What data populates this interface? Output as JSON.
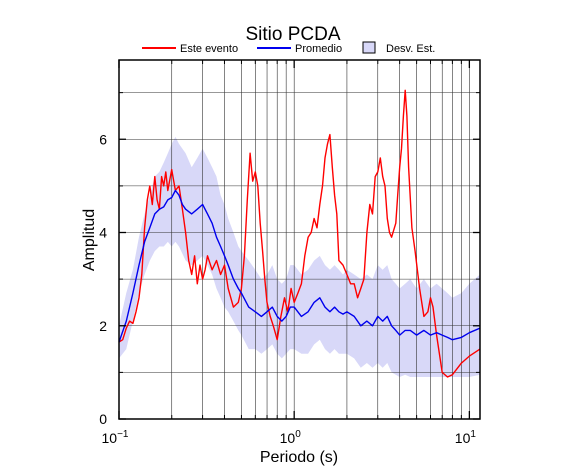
{
  "chart_data": {
    "type": "line",
    "title": "Sitio PCDA",
    "xlabel": "Periodo (s)",
    "ylabel": "Amplitud",
    "x_scale": "log",
    "xlim": [
      0.1,
      11.5
    ],
    "ylim": [
      0,
      7.7
    ],
    "x_ticks": [
      {
        "value": 0.1,
        "base": "10",
        "exp": "−1"
      },
      {
        "value": 1,
        "base": "10",
        "exp": "0"
      },
      {
        "value": 10,
        "base": "10",
        "exp": "1"
      }
    ],
    "y_ticks": [
      0,
      2,
      4,
      6
    ],
    "grid": true,
    "legend_position": "top",
    "series": [
      {
        "name": "Este evento",
        "color": "#ff0000",
        "points": [
          [
            0.1,
            1.65
          ],
          [
            0.105,
            1.7
          ],
          [
            0.11,
            1.95
          ],
          [
            0.115,
            2.1
          ],
          [
            0.12,
            2.05
          ],
          [
            0.125,
            2.3
          ],
          [
            0.13,
            2.6
          ],
          [
            0.135,
            3.1
          ],
          [
            0.14,
            4.1
          ],
          [
            0.145,
            4.7
          ],
          [
            0.15,
            5.0
          ],
          [
            0.155,
            4.6
          ],
          [
            0.16,
            5.2
          ],
          [
            0.165,
            4.7
          ],
          [
            0.17,
            4.5
          ],
          [
            0.175,
            5.2
          ],
          [
            0.18,
            5.0
          ],
          [
            0.185,
            5.3
          ],
          [
            0.19,
            4.9
          ],
          [
            0.2,
            5.35
          ],
          [
            0.21,
            4.9
          ],
          [
            0.22,
            5.0
          ],
          [
            0.23,
            4.5
          ],
          [
            0.24,
            4.0
          ],
          [
            0.25,
            3.4
          ],
          [
            0.26,
            3.1
          ],
          [
            0.27,
            3.5
          ],
          [
            0.28,
            2.9
          ],
          [
            0.29,
            3.3
          ],
          [
            0.3,
            3.0
          ],
          [
            0.31,
            3.2
          ],
          [
            0.32,
            3.5
          ],
          [
            0.34,
            3.2
          ],
          [
            0.36,
            3.4
          ],
          [
            0.38,
            3.1
          ],
          [
            0.4,
            3.3
          ],
          [
            0.42,
            2.8
          ],
          [
            0.45,
            2.4
          ],
          [
            0.48,
            2.5
          ],
          [
            0.5,
            2.8
          ],
          [
            0.52,
            3.5
          ],
          [
            0.54,
            4.7
          ],
          [
            0.56,
            5.7
          ],
          [
            0.58,
            5.1
          ],
          [
            0.6,
            5.3
          ],
          [
            0.62,
            5.0
          ],
          [
            0.64,
            4.2
          ],
          [
            0.66,
            3.6
          ],
          [
            0.68,
            3.0
          ],
          [
            0.7,
            2.5
          ],
          [
            0.73,
            2.2
          ],
          [
            0.76,
            2.0
          ],
          [
            0.8,
            1.7
          ],
          [
            0.84,
            2.2
          ],
          [
            0.88,
            2.6
          ],
          [
            0.92,
            2.3
          ],
          [
            0.96,
            2.8
          ],
          [
            1.0,
            2.5
          ],
          [
            1.05,
            2.7
          ],
          [
            1.1,
            2.9
          ],
          [
            1.15,
            3.5
          ],
          [
            1.2,
            3.9
          ],
          [
            1.25,
            4.0
          ],
          [
            1.3,
            4.3
          ],
          [
            1.35,
            4.1
          ],
          [
            1.4,
            4.6
          ],
          [
            1.45,
            5.0
          ],
          [
            1.5,
            5.6
          ],
          [
            1.55,
            5.9
          ],
          [
            1.6,
            6.1
          ],
          [
            1.65,
            5.4
          ],
          [
            1.7,
            4.8
          ],
          [
            1.75,
            4.4
          ],
          [
            1.8,
            3.4
          ],
          [
            1.9,
            3.3
          ],
          [
            2.0,
            3.1
          ],
          [
            2.1,
            2.9
          ],
          [
            2.2,
            2.9
          ],
          [
            2.3,
            2.6
          ],
          [
            2.4,
            2.8
          ],
          [
            2.5,
            3.0
          ],
          [
            2.6,
            4.0
          ],
          [
            2.7,
            4.6
          ],
          [
            2.8,
            4.4
          ],
          [
            2.9,
            5.2
          ],
          [
            3.0,
            5.3
          ],
          [
            3.1,
            5.6
          ],
          [
            3.2,
            5.2
          ],
          [
            3.3,
            5.0
          ],
          [
            3.4,
            4.3
          ],
          [
            3.5,
            4.0
          ],
          [
            3.6,
            3.9
          ],
          [
            3.8,
            4.2
          ],
          [
            3.9,
            4.8
          ],
          [
            4.0,
            5.4
          ],
          [
            4.1,
            5.8
          ],
          [
            4.2,
            6.5
          ],
          [
            4.3,
            7.05
          ],
          [
            4.4,
            6.5
          ],
          [
            4.5,
            5.4
          ],
          [
            4.7,
            4.1
          ],
          [
            4.9,
            3.6
          ],
          [
            5.2,
            2.8
          ],
          [
            5.5,
            2.2
          ],
          [
            5.8,
            2.3
          ],
          [
            6.0,
            2.6
          ],
          [
            6.2,
            2.4
          ],
          [
            6.5,
            1.8
          ],
          [
            7.0,
            1.0
          ],
          [
            7.5,
            0.9
          ],
          [
            8.0,
            0.95
          ],
          [
            9.0,
            1.2
          ],
          [
            10.0,
            1.35
          ],
          [
            11.5,
            1.5
          ]
        ]
      },
      {
        "name": "Promedio",
        "color": "#0000ee",
        "points": [
          [
            0.1,
            1.65
          ],
          [
            0.11,
            2.1
          ],
          [
            0.12,
            2.7
          ],
          [
            0.13,
            3.3
          ],
          [
            0.14,
            3.8
          ],
          [
            0.15,
            4.1
          ],
          [
            0.16,
            4.4
          ],
          [
            0.17,
            4.5
          ],
          [
            0.18,
            4.55
          ],
          [
            0.19,
            4.7
          ],
          [
            0.2,
            4.75
          ],
          [
            0.21,
            4.9
          ],
          [
            0.22,
            4.8
          ],
          [
            0.23,
            4.6
          ],
          [
            0.24,
            4.5
          ],
          [
            0.26,
            4.4
          ],
          [
            0.28,
            4.5
          ],
          [
            0.3,
            4.6
          ],
          [
            0.32,
            4.4
          ],
          [
            0.34,
            4.2
          ],
          [
            0.36,
            3.9
          ],
          [
            0.38,
            3.7
          ],
          [
            0.4,
            3.5
          ],
          [
            0.42,
            3.3
          ],
          [
            0.45,
            3.0
          ],
          [
            0.48,
            2.8
          ],
          [
            0.5,
            2.7
          ],
          [
            0.55,
            2.4
          ],
          [
            0.6,
            2.3
          ],
          [
            0.65,
            2.2
          ],
          [
            0.7,
            2.3
          ],
          [
            0.75,
            2.4
          ],
          [
            0.8,
            2.2
          ],
          [
            0.85,
            2.1
          ],
          [
            0.9,
            2.2
          ],
          [
            0.95,
            2.4
          ],
          [
            1.0,
            2.4
          ],
          [
            1.1,
            2.2
          ],
          [
            1.2,
            2.3
          ],
          [
            1.3,
            2.5
          ],
          [
            1.4,
            2.6
          ],
          [
            1.5,
            2.4
          ],
          [
            1.6,
            2.3
          ],
          [
            1.7,
            2.4
          ],
          [
            1.8,
            2.3
          ],
          [
            1.9,
            2.25
          ],
          [
            2.0,
            2.3
          ],
          [
            2.2,
            2.2
          ],
          [
            2.4,
            2.0
          ],
          [
            2.6,
            2.1
          ],
          [
            2.8,
            2.0
          ],
          [
            3.0,
            2.2
          ],
          [
            3.2,
            2.1
          ],
          [
            3.4,
            2.2
          ],
          [
            3.6,
            2.0
          ],
          [
            3.8,
            1.9
          ],
          [
            4.0,
            1.8
          ],
          [
            4.3,
            1.9
          ],
          [
            4.6,
            1.9
          ],
          [
            5.0,
            1.8
          ],
          [
            5.5,
            1.9
          ],
          [
            6.0,
            1.8
          ],
          [
            6.5,
            1.85
          ],
          [
            7.0,
            1.8
          ],
          [
            7.5,
            1.75
          ],
          [
            8.0,
            1.7
          ],
          [
            9.0,
            1.75
          ],
          [
            10.0,
            1.85
          ],
          [
            11.5,
            1.95
          ]
        ]
      },
      {
        "name": "Desv. Est.",
        "type": "band",
        "fill": "#d8d8f8",
        "upper": [
          [
            0.1,
            2.0
          ],
          [
            0.11,
            2.7
          ],
          [
            0.12,
            3.2
          ],
          [
            0.13,
            3.9
          ],
          [
            0.14,
            4.4
          ],
          [
            0.15,
            4.8
          ],
          [
            0.16,
            5.2
          ],
          [
            0.17,
            5.3
          ],
          [
            0.18,
            5.5
          ],
          [
            0.19,
            5.7
          ],
          [
            0.2,
            5.9
          ],
          [
            0.21,
            6.05
          ],
          [
            0.22,
            5.9
          ],
          [
            0.24,
            5.7
          ],
          [
            0.26,
            5.4
          ],
          [
            0.28,
            5.6
          ],
          [
            0.3,
            5.8
          ],
          [
            0.32,
            5.6
          ],
          [
            0.34,
            5.4
          ],
          [
            0.36,
            5.2
          ],
          [
            0.38,
            4.8
          ],
          [
            0.4,
            4.6
          ],
          [
            0.42,
            4.3
          ],
          [
            0.45,
            4.0
          ],
          [
            0.48,
            3.7
          ],
          [
            0.5,
            3.6
          ],
          [
            0.55,
            3.4
          ],
          [
            0.6,
            3.2
          ],
          [
            0.65,
            3.0
          ],
          [
            0.7,
            3.1
          ],
          [
            0.75,
            3.3
          ],
          [
            0.8,
            3.0
          ],
          [
            0.85,
            2.9
          ],
          [
            0.9,
            3.0
          ],
          [
            0.95,
            3.3
          ],
          [
            1.0,
            3.3
          ],
          [
            1.1,
            3.1
          ],
          [
            1.2,
            3.2
          ],
          [
            1.3,
            3.4
          ],
          [
            1.4,
            3.5
          ],
          [
            1.5,
            3.3
          ],
          [
            1.6,
            3.2
          ],
          [
            1.7,
            3.3
          ],
          [
            1.8,
            3.2
          ],
          [
            1.9,
            3.1
          ],
          [
            2.0,
            3.2
          ],
          [
            2.2,
            3.1
          ],
          [
            2.4,
            3.0
          ],
          [
            2.6,
            3.1
          ],
          [
            2.8,
            3.0
          ],
          [
            3.0,
            3.3
          ],
          [
            3.2,
            3.2
          ],
          [
            3.4,
            3.3
          ],
          [
            3.6,
            3.0
          ],
          [
            3.8,
            2.9
          ],
          [
            4.0,
            2.8
          ],
          [
            4.3,
            2.9
          ],
          [
            4.6,
            3.0
          ],
          [
            5.0,
            2.8
          ],
          [
            5.5,
            3.0
          ],
          [
            6.0,
            2.8
          ],
          [
            6.5,
            2.9
          ],
          [
            7.0,
            2.8
          ],
          [
            7.5,
            2.7
          ],
          [
            8.0,
            2.6
          ],
          [
            9.0,
            2.7
          ],
          [
            10.0,
            2.9
          ],
          [
            11.5,
            3.1
          ]
        ],
        "lower": [
          [
            0.1,
            1.3
          ],
          [
            0.11,
            1.5
          ],
          [
            0.12,
            2.1
          ],
          [
            0.13,
            2.7
          ],
          [
            0.14,
            3.1
          ],
          [
            0.15,
            3.4
          ],
          [
            0.16,
            3.6
          ],
          [
            0.17,
            3.7
          ],
          [
            0.18,
            3.7
          ],
          [
            0.19,
            3.8
          ],
          [
            0.2,
            3.7
          ],
          [
            0.21,
            3.8
          ],
          [
            0.22,
            3.7
          ],
          [
            0.24,
            3.4
          ],
          [
            0.26,
            3.3
          ],
          [
            0.28,
            3.4
          ],
          [
            0.3,
            3.5
          ],
          [
            0.32,
            3.3
          ],
          [
            0.34,
            3.1
          ],
          [
            0.36,
            2.8
          ],
          [
            0.38,
            2.6
          ],
          [
            0.4,
            2.4
          ],
          [
            0.42,
            2.3
          ],
          [
            0.45,
            2.1
          ],
          [
            0.48,
            1.9
          ],
          [
            0.5,
            1.8
          ],
          [
            0.55,
            1.5
          ],
          [
            0.6,
            1.5
          ],
          [
            0.65,
            1.4
          ],
          [
            0.7,
            1.5
          ],
          [
            0.75,
            1.6
          ],
          [
            0.8,
            1.4
          ],
          [
            0.85,
            1.3
          ],
          [
            0.9,
            1.4
          ],
          [
            0.95,
            1.5
          ],
          [
            1.0,
            1.5
          ],
          [
            1.1,
            1.4
          ],
          [
            1.2,
            1.4
          ],
          [
            1.3,
            1.6
          ],
          [
            1.4,
            1.7
          ],
          [
            1.5,
            1.5
          ],
          [
            1.6,
            1.4
          ],
          [
            1.7,
            1.5
          ],
          [
            1.8,
            1.4
          ],
          [
            1.9,
            1.4
          ],
          [
            2.0,
            1.4
          ],
          [
            2.2,
            1.3
          ],
          [
            2.4,
            1.1
          ],
          [
            2.6,
            1.2
          ],
          [
            2.8,
            1.1
          ],
          [
            3.0,
            1.2
          ],
          [
            3.2,
            1.1
          ],
          [
            3.4,
            1.2
          ],
          [
            3.6,
            1.0
          ],
          [
            3.8,
            0.95
          ],
          [
            4.0,
            0.9
          ],
          [
            4.3,
            0.95
          ],
          [
            4.6,
            0.9
          ],
          [
            5.0,
            0.9
          ],
          [
            5.5,
            0.9
          ],
          [
            6.0,
            0.9
          ],
          [
            6.5,
            0.9
          ],
          [
            7.0,
            0.9
          ],
          [
            7.5,
            0.9
          ],
          [
            8.0,
            0.9
          ],
          [
            9.0,
            0.9
          ],
          [
            10.0,
            0.9
          ],
          [
            11.5,
            0.95
          ]
        ]
      }
    ]
  }
}
